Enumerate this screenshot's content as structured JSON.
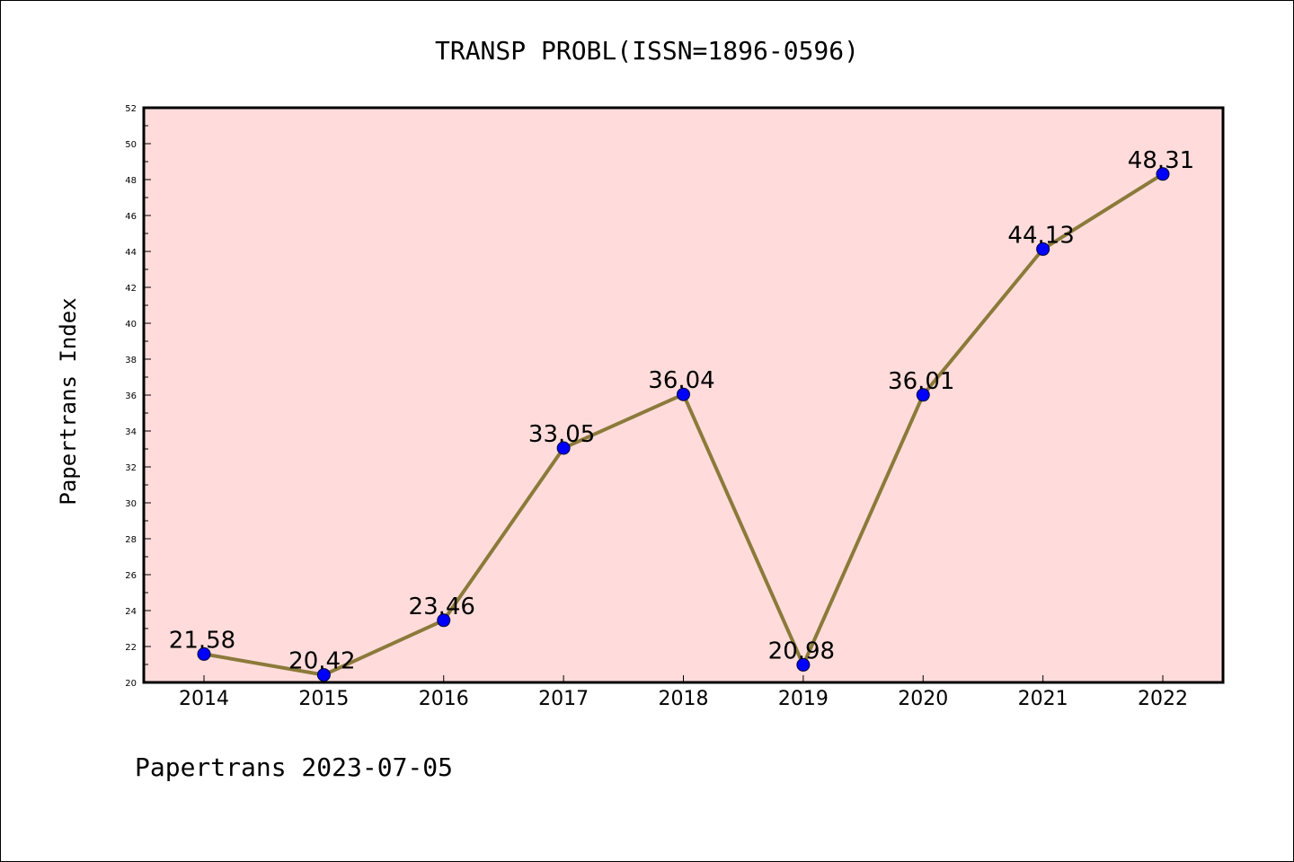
{
  "chart_data": {
    "type": "line",
    "title": "TRANSP PROBL(ISSN=1896-0596)",
    "ylabel": "Papertrans Index",
    "xlabel": "",
    "x": [
      "2014",
      "2015",
      "2016",
      "2017",
      "2018",
      "2019",
      "2020",
      "2021",
      "2022"
    ],
    "values": [
      21.58,
      20.42,
      23.46,
      33.05,
      36.04,
      20.98,
      36.01,
      44.13,
      48.31
    ],
    "data_labels": [
      "21.58",
      "20.42",
      "23.46",
      "33.05",
      "36.04",
      "20.98",
      "36.01",
      "44.13",
      "48.31"
    ],
    "ylim": [
      20,
      52
    ],
    "yticks": [
      "20",
      "22",
      "24",
      "26",
      "28",
      "30",
      "32",
      "34",
      "36",
      "38",
      "40",
      "42",
      "44",
      "46",
      "48",
      "50",
      "52"
    ],
    "grid": false,
    "colors": {
      "line": "#8b7a3a",
      "marker": "#0000ff",
      "plot_background": "#ffdcdb"
    }
  },
  "footer": "Papertrans 2023-07-05"
}
